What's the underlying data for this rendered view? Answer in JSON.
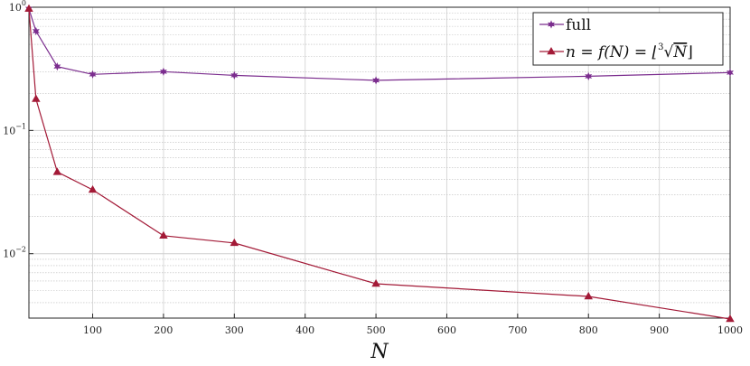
{
  "chart_data": {
    "type": "line",
    "xlabel": "N",
    "ylabel": "",
    "title": "",
    "xlim": [
      10,
      1000
    ],
    "ylim": [
      0.003,
      1
    ],
    "yscale": "log",
    "grid": true,
    "legend_position": "top-right",
    "x_ticks": [
      "100",
      "200",
      "300",
      "400",
      "500",
      "600",
      "700",
      "800",
      "900",
      "1000"
    ],
    "y_ticks": [
      {
        "base": "10",
        "exp": "0"
      },
      {
        "base": "10",
        "exp": "−1"
      },
      {
        "base": "10",
        "exp": "−2"
      }
    ],
    "x": [
      10,
      20,
      50,
      100,
      200,
      300,
      500,
      800,
      1000
    ],
    "series": [
      {
        "name": "full",
        "color": "#7b2d8e",
        "marker": "star",
        "values": [
          0.97,
          0.64,
          0.33,
          0.285,
          0.3,
          0.28,
          0.255,
          0.275,
          0.295
        ]
      },
      {
        "name_parts": [
          "n = f(N) = ⌊",
          "3",
          "√",
          "N",
          "⌋"
        ],
        "color": "#a31a37",
        "marker": "triangle",
        "values": [
          0.97,
          0.18,
          0.046,
          0.033,
          0.014,
          0.0122,
          0.0057,
          0.0045,
          0.00295
        ]
      }
    ]
  }
}
